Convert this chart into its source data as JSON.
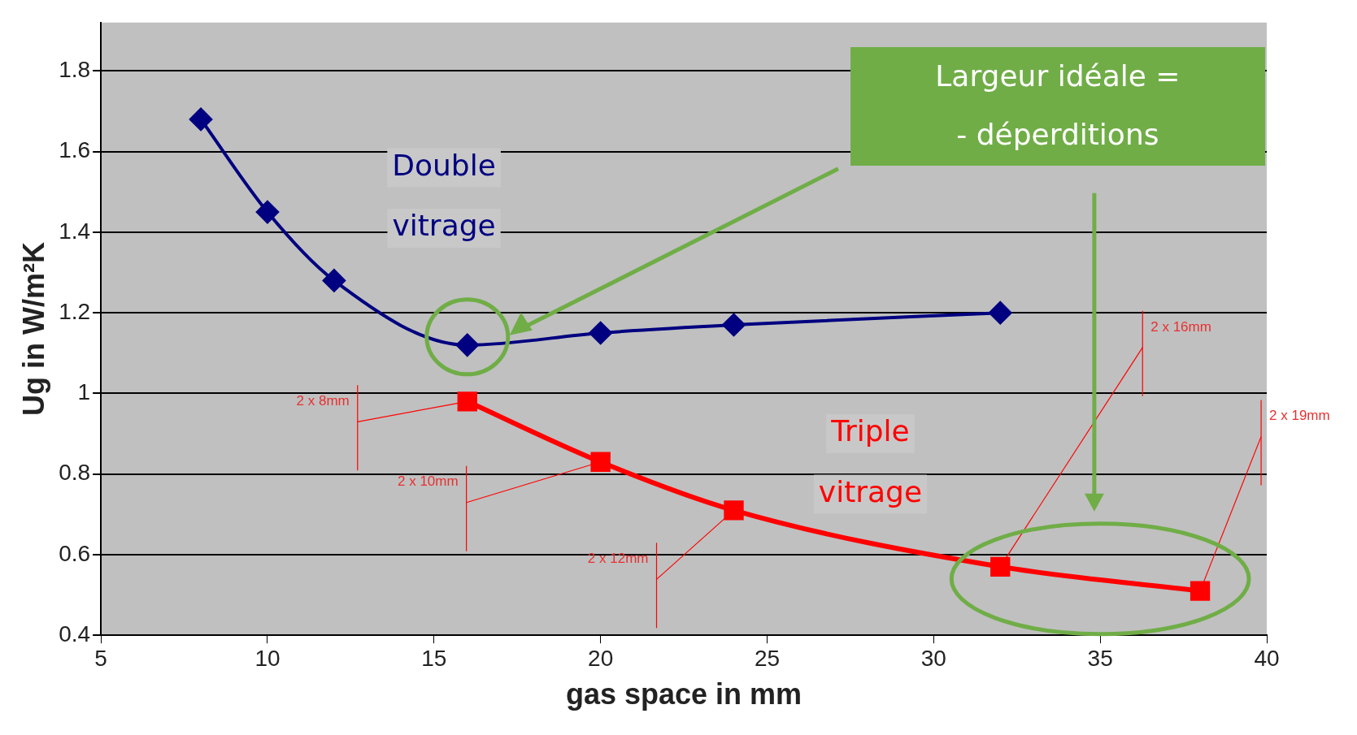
{
  "chart_data": {
    "type": "line",
    "xlabel": "gas space in mm",
    "ylabel": "Ug in W/m²K",
    "xlim": [
      5,
      40
    ],
    "xticks": [
      5,
      10,
      15,
      20,
      25,
      30,
      35,
      40
    ],
    "ylim": [
      0.4,
      1.92
    ],
    "yticks": [
      0.4,
      0.6,
      0.8,
      1,
      1.2,
      1.4,
      1.6,
      1.8
    ],
    "grid": "y",
    "series": [
      {
        "name": "Double vitrage",
        "color": "#000080",
        "marker": "diamond",
        "x": [
          8,
          10,
          12,
          16,
          20,
          24,
          32
        ],
        "values": [
          1.68,
          1.45,
          1.28,
          1.12,
          1.15,
          1.17,
          1.2
        ]
      },
      {
        "name": "Triple vitrage",
        "color": "#ff0000",
        "marker": "square",
        "x": [
          16,
          20,
          24,
          32,
          38
        ],
        "values": [
          0.98,
          0.83,
          0.71,
          0.57,
          0.51
        ]
      }
    ],
    "annotations": [
      {
        "text": "2 x 8mm",
        "x": 16,
        "y": 0.98
      },
      {
        "text": "2 x 10mm",
        "x": 20,
        "y": 0.83
      },
      {
        "text": "2 x 12mm",
        "x": 24,
        "y": 0.71
      },
      {
        "text": "2 x 16mm",
        "x": 32,
        "y": 0.57
      },
      {
        "text": "2 x 19mm",
        "x": 38,
        "y": 0.51
      },
      "Largeur idéale =\n- déperditions"
    ]
  }
}
